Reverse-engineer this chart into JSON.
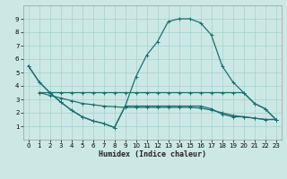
{
  "xlabel": "Humidex (Indice chaleur)",
  "bg_color": "#cce8e5",
  "grid_color": "#aad4d0",
  "line_color": "#1a7070",
  "xlim": [
    -0.5,
    23.5
  ],
  "ylim": [
    0,
    10
  ],
  "xtick_labels": [
    "0",
    "1",
    "2",
    "3",
    "4",
    "5",
    "6",
    "7",
    "8",
    "9",
    "10",
    "11",
    "12",
    "13",
    "14",
    "15",
    "16",
    "17",
    "18",
    "19",
    "20",
    "21",
    "22",
    "23"
  ],
  "xticks": [
    0,
    1,
    2,
    3,
    4,
    5,
    6,
    7,
    8,
    9,
    10,
    11,
    12,
    13,
    14,
    15,
    16,
    17,
    18,
    19,
    20,
    21,
    22,
    23
  ],
  "yticks": [
    1,
    2,
    3,
    4,
    5,
    6,
    7,
    8,
    9
  ],
  "curve1_x": [
    0,
    1,
    2,
    3,
    4,
    5,
    6,
    7,
    8,
    9,
    10,
    11,
    12,
    13,
    14,
    15,
    16,
    17,
    18,
    19,
    20,
    21,
    22,
    23
  ],
  "curve1_y": [
    5.5,
    4.3,
    3.5,
    2.8,
    2.2,
    1.7,
    1.4,
    1.2,
    0.9,
    2.5,
    4.7,
    6.3,
    7.3,
    8.8,
    9.0,
    9.0,
    8.7,
    7.8,
    5.5,
    4.3,
    3.5,
    2.7,
    2.3,
    1.5
  ],
  "curve2_x": [
    1,
    2,
    3,
    4,
    5,
    6,
    7,
    8,
    9,
    10,
    11,
    12,
    13,
    14,
    15,
    16,
    17,
    18,
    19,
    20,
    21,
    22,
    23
  ],
  "curve2_y": [
    3.5,
    3.5,
    3.5,
    3.5,
    3.5,
    3.5,
    3.5,
    3.5,
    3.5,
    3.5,
    3.5,
    3.5,
    3.5,
    3.5,
    3.5,
    3.5,
    3.5,
    3.5,
    3.5,
    3.5,
    2.7,
    2.3,
    1.5
  ],
  "curve3_x": [
    1,
    2,
    3,
    4,
    5,
    6,
    7,
    8,
    9,
    10,
    11,
    12,
    13,
    14,
    15,
    16,
    17,
    18,
    19,
    20,
    21,
    22,
    23
  ],
  "curve3_y": [
    3.5,
    3.3,
    3.1,
    2.9,
    2.7,
    2.6,
    2.5,
    2.45,
    2.4,
    2.4,
    2.4,
    2.4,
    2.4,
    2.4,
    2.4,
    2.35,
    2.2,
    2.0,
    1.8,
    1.7,
    1.6,
    1.5,
    1.5
  ],
  "curve4_x": [
    0,
    1,
    2,
    3,
    4,
    5,
    6,
    7,
    8,
    9,
    10,
    11,
    12,
    13,
    14,
    15,
    16,
    17,
    18,
    19,
    20,
    21,
    22,
    23
  ],
  "curve4_y": [
    5.5,
    4.3,
    3.5,
    2.8,
    2.2,
    1.7,
    1.4,
    1.2,
    0.9,
    2.5,
    2.5,
    2.5,
    2.5,
    2.5,
    2.5,
    2.5,
    2.5,
    2.3,
    1.9,
    1.7,
    1.7,
    1.6,
    1.5,
    1.5
  ]
}
